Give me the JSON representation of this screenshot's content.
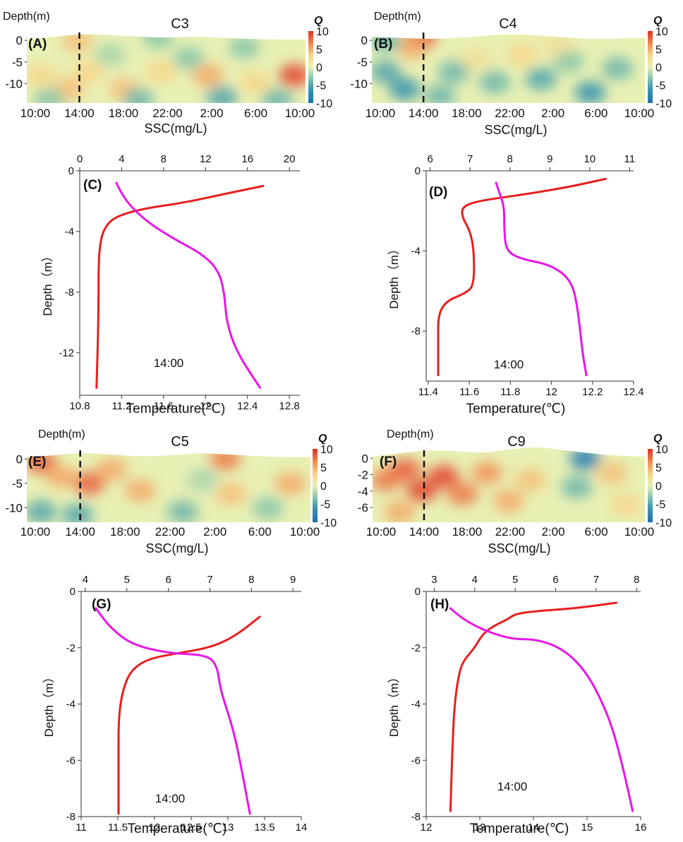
{
  "chart_data": [
    {
      "type": "heatmap",
      "panel_label": "(A)",
      "title": "C3",
      "ylabel": "Depth(m)",
      "xlabel": "",
      "x_ticks": [
        "10:00",
        "14:00",
        "18:00",
        "22:00",
        "2:00",
        "6:00",
        "10:00"
      ],
      "y_ticks": [
        0,
        -5,
        -10
      ],
      "ylim": [
        -14.5,
        1.5
      ],
      "colorbar": {
        "label": "Q",
        "ticks": [
          10,
          5,
          0,
          -5,
          -10
        ],
        "range": [
          -10,
          10
        ]
      },
      "marker_time": "14:00",
      "surface_profile": [
        0.3,
        0.8,
        1.5,
        1.2,
        0.9,
        0.6,
        0.9,
        0.6,
        0.3,
        0.2,
        0.2
      ],
      "blobs": [
        {
          "t": 0.05,
          "d": 0.6,
          "v": 3
        },
        {
          "t": 0.18,
          "d": 0.1,
          "v": 4
        },
        {
          "t": 0.22,
          "d": 0.55,
          "v": 3
        },
        {
          "t": 0.15,
          "d": 0.8,
          "v": 4
        },
        {
          "t": 0.35,
          "d": 0.8,
          "v": 4
        },
        {
          "t": 0.48,
          "d": 0.55,
          "v": 3
        },
        {
          "t": 0.47,
          "d": 0.05,
          "v": -3
        },
        {
          "t": 0.58,
          "d": 0.35,
          "v": -3
        },
        {
          "t": 0.65,
          "d": 0.6,
          "v": 5
        },
        {
          "t": 0.78,
          "d": 0.2,
          "v": -3
        },
        {
          "t": 0.82,
          "d": 0.7,
          "v": 3
        },
        {
          "t": 0.96,
          "d": 0.6,
          "v": 9
        },
        {
          "t": 0.3,
          "d": 0.3,
          "v": -2
        },
        {
          "t": 0.7,
          "d": 0.92,
          "v": -5
        },
        {
          "t": 0.4,
          "d": 0.95,
          "v": -4
        },
        {
          "t": 0.08,
          "d": 0.95,
          "v": -3
        },
        {
          "t": 0.9,
          "d": 0.95,
          "v": -4
        }
      ]
    },
    {
      "type": "heatmap",
      "panel_label": "(B)",
      "title": "C4",
      "ylabel": "Depth(m)",
      "xlabel": "",
      "x_ticks": [
        "10:00",
        "14:00",
        "18:00",
        "22:00",
        "2:00",
        "6:00",
        "10:00"
      ],
      "y_ticks": [
        0,
        -5,
        -10
      ],
      "ylim": [
        -14.5,
        1.5
      ],
      "colorbar": {
        "label": "Q",
        "ticks": [
          10,
          5,
          0,
          -5,
          -10
        ],
        "range": [
          -10,
          10
        ]
      },
      "marker_time": "14:00",
      "surface_profile": [
        0.8,
        0.6,
        0.3,
        0.5,
        1.0,
        1.5,
        1.2,
        0.7,
        0.3,
        0.4,
        0.6
      ],
      "blobs": [
        {
          "t": 0.18,
          "d": 0.05,
          "v": 9
        },
        {
          "t": 0.15,
          "d": 0.2,
          "v": 5
        },
        {
          "t": 0.05,
          "d": 0.1,
          "v": -4
        },
        {
          "t": 0.05,
          "d": 0.55,
          "v": -5
        },
        {
          "t": 0.12,
          "d": 0.8,
          "v": -6
        },
        {
          "t": 0.3,
          "d": 0.55,
          "v": -4
        },
        {
          "t": 0.38,
          "d": 0.35,
          "v": 2
        },
        {
          "t": 0.45,
          "d": 0.7,
          "v": -4
        },
        {
          "t": 0.55,
          "d": 0.3,
          "v": 3
        },
        {
          "t": 0.62,
          "d": 0.65,
          "v": -5
        },
        {
          "t": 0.72,
          "d": 0.4,
          "v": -3
        },
        {
          "t": 0.8,
          "d": 0.85,
          "v": -6
        },
        {
          "t": 0.9,
          "d": 0.5,
          "v": -4
        },
        {
          "t": 0.68,
          "d": 0.15,
          "v": 2
        },
        {
          "t": 0.25,
          "d": 0.9,
          "v": -4
        }
      ]
    },
    {
      "type": "line",
      "panel_label": "(C)",
      "annotation": "14:00",
      "ylabel": "Depth（m）",
      "x_top": {
        "label": "SSC(mg/L)",
        "range": [
          0,
          21
        ],
        "ticks": [
          0,
          4,
          8,
          12,
          16,
          20
        ]
      },
      "x_bottom": {
        "label": "Temperature(℃)",
        "range": [
          10.8,
          12.9
        ],
        "ticks": [
          "10.8",
          "11.2",
          "11.6",
          "12",
          "12.4",
          "12.8"
        ]
      },
      "y_range": [
        -14.8,
        0
      ],
      "y_ticks": [
        0,
        -4,
        -8,
        -12
      ],
      "series": [
        {
          "axis": "top",
          "color": "#e81e1e",
          "points": [
            [
              17.5,
              -1.0
            ],
            [
              14,
              -1.5
            ],
            [
              10,
              -2.1
            ],
            [
              6,
              -2.5
            ],
            [
              3.5,
              -3.0
            ],
            [
              2.5,
              -3.6
            ],
            [
              2.0,
              -4.5
            ],
            [
              1.8,
              -6.0
            ],
            [
              1.8,
              -9.0
            ],
            [
              1.7,
              -12.0
            ],
            [
              1.6,
              -14.3
            ]
          ]
        },
        {
          "axis": "bottom",
          "color": "#e815e8",
          "points": [
            [
              11.15,
              -0.8
            ],
            [
              11.2,
              -1.5
            ],
            [
              11.28,
              -2.3
            ],
            [
              11.45,
              -3.4
            ],
            [
              11.7,
              -4.5
            ],
            [
              11.95,
              -5.4
            ],
            [
              12.12,
              -6.5
            ],
            [
              12.18,
              -8.0
            ],
            [
              12.2,
              -10.0
            ],
            [
              12.3,
              -12.0
            ],
            [
              12.52,
              -14.3
            ]
          ]
        }
      ]
    },
    {
      "type": "line",
      "panel_label": "(D)",
      "annotation": "14:00",
      "ylabel": "Depth（m）",
      "x_top": {
        "label": "SSC(mg/L)",
        "range": [
          5.9,
          11.1
        ],
        "ticks": [
          6,
          7,
          8,
          9,
          10,
          11
        ]
      },
      "x_bottom": {
        "label": "Temperature(℃)",
        "range": [
          11.39,
          12.4
        ],
        "ticks": [
          "11.4",
          "11.6",
          "11.8",
          "12",
          "12.2",
          "12.4"
        ]
      },
      "y_range": [
        -10.5,
        0
      ],
      "y_ticks": [
        0,
        -4,
        -8
      ],
      "series": [
        {
          "axis": "top",
          "color": "#e81e1e",
          "points": [
            [
              10.4,
              -0.4
            ],
            [
              9.5,
              -0.8
            ],
            [
              8.3,
              -1.2
            ],
            [
              7.2,
              -1.5
            ],
            [
              6.8,
              -1.8
            ],
            [
              6.8,
              -2.3
            ],
            [
              7.0,
              -3.0
            ],
            [
              7.1,
              -4.0
            ],
            [
              7.1,
              -5.7
            ],
            [
              6.9,
              -6.1
            ],
            [
              6.4,
              -6.5
            ],
            [
              6.2,
              -7.2
            ],
            [
              6.2,
              -8.5
            ],
            [
              6.2,
              -10.2
            ]
          ]
        },
        {
          "axis": "bottom",
          "color": "#e815e8",
          "points": [
            [
              11.73,
              -0.6
            ],
            [
              11.75,
              -1.2
            ],
            [
              11.77,
              -1.8
            ],
            [
              11.77,
              -3.0
            ],
            [
              11.78,
              -4.0
            ],
            [
              11.85,
              -4.4
            ],
            [
              12.0,
              -4.7
            ],
            [
              12.1,
              -5.5
            ],
            [
              12.13,
              -7.0
            ],
            [
              12.15,
              -9.0
            ],
            [
              12.17,
              -10.2
            ]
          ]
        }
      ]
    },
    {
      "type": "heatmap",
      "panel_label": "(E)",
      "title": "C5",
      "ylabel": "Depth(m)",
      "xlabel": "",
      "x_ticks": [
        "10:00",
        "14:00",
        "18:00",
        "22:00",
        "2:00",
        "6:00",
        "10:00"
      ],
      "y_ticks": [
        0,
        -5,
        -10
      ],
      "ylim": [
        -13,
        1.5
      ],
      "colorbar": {
        "label": "Q",
        "ticks": [
          10,
          5,
          0,
          -5,
          -10
        ],
        "range": [
          -10,
          10
        ]
      },
      "marker_time": "14:00",
      "surface_profile": [
        0.3,
        0.8,
        1.3,
        0.9,
        0.5,
        0.7,
        1.2,
        1.0,
        0.6,
        0.4,
        0.4
      ],
      "blobs": [
        {
          "t": 0.05,
          "d": 0.15,
          "v": 8
        },
        {
          "t": 0.12,
          "d": 0.35,
          "v": 5
        },
        {
          "t": 0.22,
          "d": 0.45,
          "v": 8
        },
        {
          "t": 0.3,
          "d": 0.25,
          "v": 5
        },
        {
          "t": 0.4,
          "d": 0.55,
          "v": 5
        },
        {
          "t": 0.7,
          "d": 0.1,
          "v": 7
        },
        {
          "t": 0.72,
          "d": 0.6,
          "v": 4
        },
        {
          "t": 0.93,
          "d": 0.45,
          "v": 5
        },
        {
          "t": 0.18,
          "d": 0.9,
          "v": -5
        },
        {
          "t": 0.55,
          "d": 0.85,
          "v": -4
        },
        {
          "t": 0.62,
          "d": 0.4,
          "v": -2
        },
        {
          "t": 0.85,
          "d": 0.8,
          "v": -3
        },
        {
          "t": 0.05,
          "d": 0.85,
          "v": -5
        }
      ]
    },
    {
      "type": "heatmap",
      "panel_label": "(F)",
      "title": "C9",
      "ylabel": "Depth(m)",
      "xlabel": "",
      "x_ticks": [
        "10:00",
        "14:00",
        "18:00",
        "22:00",
        "2:00",
        "6:00",
        "10:00"
      ],
      "y_ticks": [
        0,
        -2,
        -4,
        -6
      ],
      "ylim": [
        -7.8,
        0.8
      ],
      "colorbar": {
        "label": "Q",
        "ticks": [
          10,
          5,
          0,
          -5,
          -10
        ],
        "range": [
          -10,
          10
        ]
      },
      "marker_time": "14:00",
      "surface_profile": [
        0.2,
        0.6,
        1.0,
        0.9,
        0.6,
        1.1,
        1.4,
        1.0,
        0.6,
        0.3,
        0.2
      ],
      "blobs": [
        {
          "t": 0.05,
          "d": 0.4,
          "v": 7
        },
        {
          "t": 0.12,
          "d": 0.25,
          "v": 8
        },
        {
          "t": 0.18,
          "d": 0.55,
          "v": 9
        },
        {
          "t": 0.26,
          "d": 0.35,
          "v": 9
        },
        {
          "t": 0.33,
          "d": 0.6,
          "v": 7
        },
        {
          "t": 0.42,
          "d": 0.3,
          "v": 6
        },
        {
          "t": 0.5,
          "d": 0.7,
          "v": 5
        },
        {
          "t": 0.58,
          "d": 0.4,
          "v": 4
        },
        {
          "t": 0.78,
          "d": 0.1,
          "v": -8
        },
        {
          "t": 0.75,
          "d": 0.5,
          "v": -4
        },
        {
          "t": 0.88,
          "d": 0.3,
          "v": 4
        },
        {
          "t": 0.93,
          "d": 0.75,
          "v": 3
        },
        {
          "t": 0.1,
          "d": 0.85,
          "v": 5
        }
      ]
    },
    {
      "type": "line",
      "panel_label": "(G)",
      "annotation": "14:00",
      "ylabel": "Depth（m）",
      "x_top": {
        "label": "SSC(mg/L)",
        "range": [
          3.9,
          9.2
        ],
        "ticks": [
          4,
          5,
          6,
          7,
          8,
          9
        ]
      },
      "x_bottom": {
        "label": "Temperature(℃)",
        "range": [
          11,
          14
        ],
        "ticks": [
          "11",
          "11.5",
          "12",
          "12.5",
          "13",
          "13.5",
          "14"
        ]
      },
      "y_range": [
        -8,
        0
      ],
      "y_ticks": [
        0,
        -2,
        -4,
        -6,
        -8
      ],
      "series": [
        {
          "axis": "top",
          "color": "#e81e1e",
          "points": [
            [
              8.2,
              -0.9
            ],
            [
              7.6,
              -1.6
            ],
            [
              7.0,
              -2.0
            ],
            [
              6.2,
              -2.2
            ],
            [
              5.5,
              -2.4
            ],
            [
              5.1,
              -2.8
            ],
            [
              4.9,
              -3.5
            ],
            [
              4.8,
              -4.5
            ],
            [
              4.8,
              -6.0
            ],
            [
              4.8,
              -7.9
            ]
          ]
        },
        {
          "axis": "bottom",
          "color": "#e815e8",
          "points": [
            [
              11.2,
              -0.6
            ],
            [
              11.4,
              -1.3
            ],
            [
              11.7,
              -1.9
            ],
            [
              12.2,
              -2.2
            ],
            [
              12.7,
              -2.25
            ],
            [
              12.85,
              -2.6
            ],
            [
              12.9,
              -3.5
            ],
            [
              13.0,
              -4.3
            ],
            [
              13.1,
              -5.2
            ],
            [
              13.2,
              -6.5
            ],
            [
              13.3,
              -7.9
            ]
          ]
        }
      ]
    },
    {
      "type": "line",
      "panel_label": "(H)",
      "annotation": "14:00",
      "ylabel": "Depth（m）",
      "x_top": {
        "label": "SSC(mg/L)",
        "range": [
          2.8,
          8.1
        ],
        "ticks": [
          3,
          4,
          5,
          6,
          7,
          8
        ]
      },
      "x_bottom": {
        "label": "Temperature(℃)",
        "range": [
          12,
          16
        ],
        "ticks": [
          "12",
          "13",
          "14",
          "15",
          "16"
        ]
      },
      "y_range": [
        -8,
        0
      ],
      "y_ticks": [
        0,
        -2,
        -4,
        -6,
        -8
      ],
      "series": [
        {
          "axis": "top",
          "color": "#e81e1e",
          "points": [
            [
              7.5,
              -0.4
            ],
            [
              6.5,
              -0.6
            ],
            [
              5.5,
              -0.7
            ],
            [
              5.0,
              -0.8
            ],
            [
              4.8,
              -1.0
            ],
            [
              4.5,
              -1.2
            ],
            [
              4.2,
              -1.5
            ],
            [
              4.0,
              -2.0
            ],
            [
              3.7,
              -2.5
            ],
            [
              3.6,
              -3.0
            ],
            [
              3.5,
              -4.0
            ],
            [
              3.45,
              -5.5
            ],
            [
              3.4,
              -7.8
            ]
          ]
        },
        {
          "axis": "bottom",
          "color": "#e815e8",
          "points": [
            [
              12.45,
              -0.6
            ],
            [
              12.7,
              -1.0
            ],
            [
              13.1,
              -1.4
            ],
            [
              13.6,
              -1.7
            ],
            [
              14.1,
              -1.7
            ],
            [
              14.6,
              -2.1
            ],
            [
              15.0,
              -2.9
            ],
            [
              15.3,
              -4.0
            ],
            [
              15.5,
              -5.0
            ],
            [
              15.7,
              -6.5
            ],
            [
              15.85,
              -7.8
            ]
          ]
        }
      ]
    }
  ]
}
